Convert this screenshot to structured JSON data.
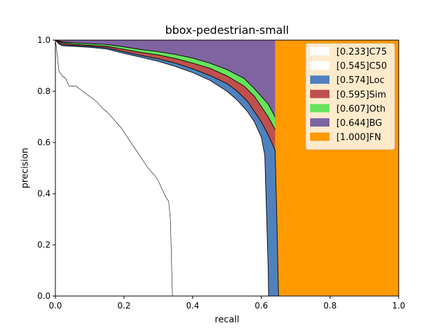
{
  "chart_data": {
    "type": "area",
    "title": "bbox-pedestrian-small",
    "xlabel": "recall",
    "ylabel": "precision",
    "xlim": [
      0,
      1
    ],
    "ylim": [
      0,
      1
    ],
    "xticks": [
      "0.0",
      "0.2",
      "0.4",
      "0.6",
      "0.8",
      "1.0"
    ],
    "yticks": [
      "0.0",
      "0.2",
      "0.4",
      "0.6",
      "0.8",
      "1.0"
    ],
    "grid": false,
    "legend_position": "top-right",
    "legend": [
      {
        "label": "[0.233]C75",
        "color": "#ffffff"
      },
      {
        "label": "[0.545]C50",
        "color": "#ffffff"
      },
      {
        "label": "[0.574]Loc",
        "color": "#4f81bd"
      },
      {
        "label": "[0.595]Sim",
        "color": "#c0504d"
      },
      {
        "label": "[0.607]Oth",
        "color": "#66e35c"
      },
      {
        "label": "[0.644]BG",
        "color": "#8064a2"
      },
      {
        "label": "[1.000]FN",
        "color": "#ff9900"
      }
    ],
    "series": [
      {
        "name": "[0.233]C75",
        "color": "#ffffff",
        "x": [
          0,
          0.005,
          0.01,
          0.02,
          0.03,
          0.04,
          0.05,
          0.06,
          0.07,
          0.08,
          0.09,
          0.1,
          0.12,
          0.14,
          0.15,
          0.17,
          0.19,
          0.21,
          0.23,
          0.25,
          0.27,
          0.29,
          0.3,
          0.31,
          0.32,
          0.33,
          0.335,
          0.34,
          0.341
        ],
        "y": [
          1.0,
          0.95,
          0.88,
          0.86,
          0.85,
          0.82,
          0.82,
          0.82,
          0.81,
          0.8,
          0.79,
          0.78,
          0.76,
          0.73,
          0.72,
          0.69,
          0.66,
          0.62,
          0.58,
          0.54,
          0.5,
          0.47,
          0.45,
          0.42,
          0.39,
          0.37,
          0.3,
          0.05,
          0.0
        ]
      },
      {
        "name": "[0.545]C50",
        "color": "#ffffff",
        "x": [
          0,
          0.01,
          0.02,
          0.05,
          0.1,
          0.15,
          0.2,
          0.25,
          0.3,
          0.35,
          0.4,
          0.45,
          0.5,
          0.53,
          0.56,
          0.58,
          0.6,
          0.61,
          0.62,
          0.621
        ],
        "y": [
          1.0,
          0.985,
          0.978,
          0.976,
          0.972,
          0.965,
          0.948,
          0.933,
          0.917,
          0.897,
          0.873,
          0.843,
          0.8,
          0.765,
          0.72,
          0.68,
          0.62,
          0.55,
          0.1,
          0.0
        ]
      },
      {
        "name": "[0.574]Loc",
        "color": "#4f81bd",
        "x": [
          0,
          0.01,
          0.02,
          0.05,
          0.1,
          0.15,
          0.2,
          0.25,
          0.3,
          0.35,
          0.4,
          0.45,
          0.5,
          0.53,
          0.56,
          0.58,
          0.6,
          0.62,
          0.63,
          0.64,
          0.645,
          0.65
        ],
        "y": [
          1.0,
          0.99,
          0.983,
          0.98,
          0.976,
          0.97,
          0.955,
          0.94,
          0.927,
          0.91,
          0.888,
          0.862,
          0.83,
          0.8,
          0.76,
          0.72,
          0.68,
          0.63,
          0.6,
          0.57,
          0.3,
          0.0
        ]
      },
      {
        "name": "[0.595]Sim",
        "color": "#c0504d",
        "x": [
          0,
          0.02,
          0.05,
          0.1,
          0.15,
          0.2,
          0.25,
          0.3,
          0.35,
          0.4,
          0.45,
          0.5,
          0.55,
          0.58,
          0.6,
          0.62,
          0.64
        ],
        "y": [
          1.0,
          0.99,
          0.985,
          0.98,
          0.976,
          0.964,
          0.952,
          0.942,
          0.928,
          0.91,
          0.89,
          0.86,
          0.82,
          0.78,
          0.74,
          0.7,
          0.65
        ]
      },
      {
        "name": "[0.607]Oth",
        "color": "#66e35c",
        "x": [
          0,
          0.02,
          0.05,
          0.1,
          0.15,
          0.2,
          0.25,
          0.3,
          0.35,
          0.4,
          0.45,
          0.5,
          0.55,
          0.58,
          0.6,
          0.62,
          0.64
        ],
        "y": [
          1.0,
          0.993,
          0.99,
          0.986,
          0.983,
          0.974,
          0.963,
          0.955,
          0.944,
          0.93,
          0.91,
          0.885,
          0.85,
          0.81,
          0.78,
          0.75,
          0.7
        ]
      },
      {
        "name": "[0.644]BG",
        "color": "#8064a2",
        "x": [
          0,
          0.64
        ],
        "y": [
          1.0,
          1.0
        ]
      },
      {
        "name": "[1.000]FN",
        "color": "#ff9900",
        "x": [
          0.64,
          1.0
        ],
        "y": [
          1.0,
          1.0
        ]
      }
    ]
  }
}
